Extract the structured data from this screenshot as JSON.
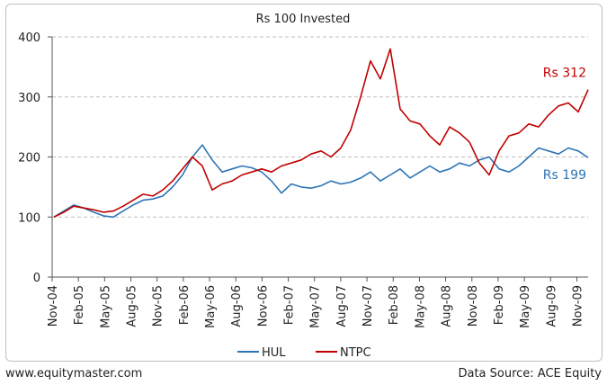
{
  "chart_data": {
    "type": "line",
    "title": "Rs 100 Invested",
    "x_tick_labels": [
      "Nov-04",
      "Feb-05",
      "May-05",
      "Aug-05",
      "Nov-05",
      "Feb-06",
      "May-06",
      "Aug-06",
      "Nov-06",
      "Feb-07",
      "May-07",
      "Aug-07",
      "Nov-07",
      "Feb-08",
      "May-08",
      "Aug-08",
      "Nov-08",
      "Feb-09",
      "May-09",
      "Aug-09",
      "Nov-09"
    ],
    "y_ticks": [
      0,
      100,
      200,
      300,
      400
    ],
    "ylim": [
      0,
      400
    ],
    "grid": "horizontal-dashed",
    "legend_position": "bottom",
    "series": [
      {
        "name": "HUL",
        "color": "#2e75b6",
        "end_label": "Rs 199",
        "values": [
          100,
          110,
          120,
          115,
          108,
          102,
          100,
          110,
          120,
          128,
          130,
          135,
          150,
          170,
          200,
          220,
          195,
          175,
          180,
          185,
          182,
          175,
          160,
          140,
          155,
          150,
          148,
          152,
          160,
          155,
          158,
          165,
          175,
          160,
          170,
          180,
          165,
          175,
          185,
          175,
          180,
          190,
          185,
          195,
          200,
          180,
          175,
          185,
          200,
          215,
          210,
          205,
          215,
          210,
          199
        ]
      },
      {
        "name": "NTPC",
        "color": "#c00000",
        "end_label": "Rs 312",
        "values": [
          100,
          108,
          118,
          115,
          112,
          108,
          110,
          118,
          128,
          138,
          135,
          145,
          160,
          180,
          200,
          185,
          145,
          155,
          160,
          170,
          175,
          180,
          175,
          185,
          190,
          195,
          205,
          210,
          200,
          215,
          245,
          300,
          360,
          330,
          380,
          280,
          260,
          255,
          235,
          220,
          250,
          240,
          225,
          190,
          170,
          210,
          235,
          240,
          255,
          250,
          270,
          285,
          290,
          275,
          312
        ]
      }
    ]
  },
  "footer": {
    "source_left": "www.equitymaster.com",
    "source_right": "Data Source: ACE Equity"
  }
}
